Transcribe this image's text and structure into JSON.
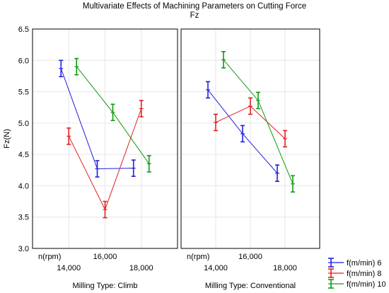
{
  "chart_data": {
    "type": "line",
    "title": "Multivariate Effects of Machining Parameters on Cutting Force",
    "subtitle": "Fz",
    "ylabel": "Fz(N)",
    "ylim": [
      3.0,
      6.5
    ],
    "yticks": [
      "3.0",
      "3.5",
      "4.0",
      "4.5",
      "5.0",
      "5.5",
      "6.0",
      "6.5"
    ],
    "x_name": "n(rpm)",
    "categories": [
      "14,000",
      "16,000",
      "18,000"
    ],
    "grid": true,
    "error_bars": true,
    "legend_position": "bottom-right",
    "series_colors": [
      "#1f1fe0",
      "#e01f1f",
      "#109a10"
    ],
    "series_names": [
      "f(m/min) 6",
      "f(m/min) 8",
      "f(m/min) 10"
    ],
    "panels": [
      {
        "label": "Milling Type: Climb",
        "series": [
          {
            "name": "f(m/min) 6",
            "values": [
              5.87,
              4.27,
              4.28
            ],
            "err": [
              0.13,
              0.13,
              0.13
            ]
          },
          {
            "name": "f(m/min) 8",
            "values": [
              4.79,
              3.62,
              5.23
            ],
            "err": [
              0.13,
              0.13,
              0.13
            ]
          },
          {
            "name": "f(m/min) 10",
            "values": [
              5.9,
              5.17,
              4.35
            ],
            "err": [
              0.13,
              0.13,
              0.13
            ]
          }
        ]
      },
      {
        "label": "Milling Type: Conventional",
        "series": [
          {
            "name": "f(m/min) 6",
            "values": [
              5.53,
              4.83,
              4.2
            ],
            "err": [
              0.13,
              0.13,
              0.13
            ]
          },
          {
            "name": "f(m/min) 8",
            "values": [
              5.01,
              5.27,
              4.75
            ],
            "err": [
              0.13,
              0.13,
              0.13
            ]
          },
          {
            "name": "f(m/min) 10",
            "values": [
              6.01,
              5.36,
              4.03
            ],
            "err": [
              0.13,
              0.13,
              0.13
            ]
          }
        ]
      }
    ]
  }
}
